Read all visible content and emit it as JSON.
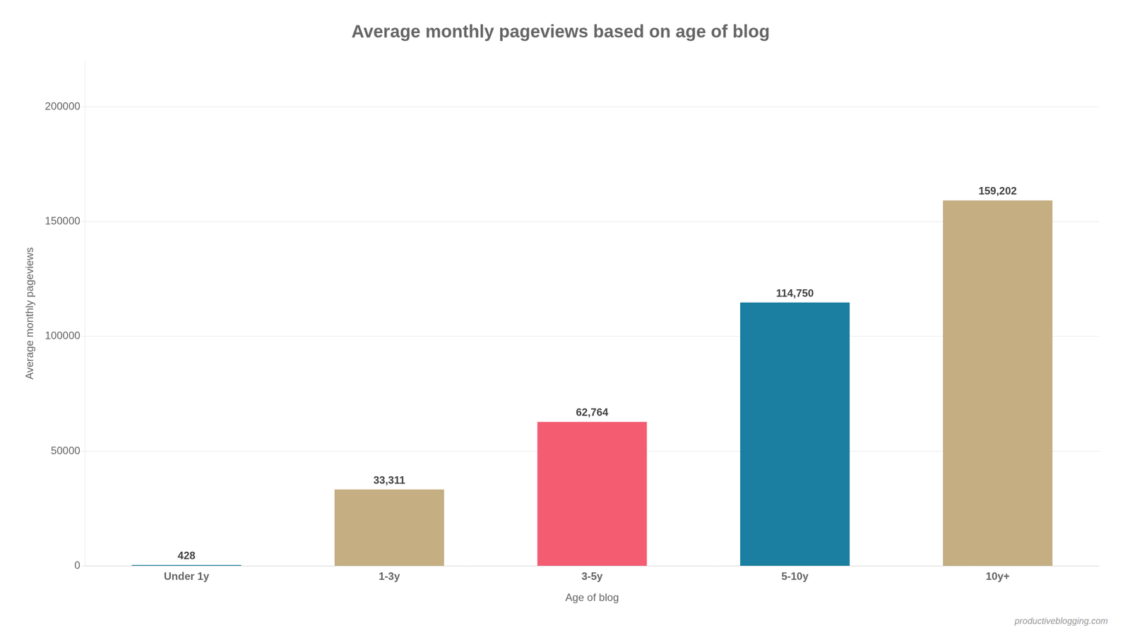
{
  "chart_data": {
    "type": "bar",
    "title": "Average monthly pageviews based on age of blog",
    "xlabel": "Age of blog",
    "ylabel": "Average monthly pageviews",
    "categories": [
      "Under 1y",
      "1-3y",
      "3-5y",
      "5-10y",
      "10y+"
    ],
    "values": [
      428,
      33311,
      62764,
      114750,
      159202
    ],
    "value_labels": [
      "428",
      "33,311",
      "62,764",
      "114,750",
      "159,202"
    ],
    "data_labels": true,
    "colors": [
      "#1a7fa0",
      "#c4ae82",
      "#f45c72",
      "#1a7fa0",
      "#c4ae82"
    ],
    "ylim": [
      0,
      220000
    ],
    "yticks": [
      0,
      50000,
      100000,
      150000,
      200000
    ],
    "grid": true,
    "annotation": "productiveblogging.com"
  }
}
